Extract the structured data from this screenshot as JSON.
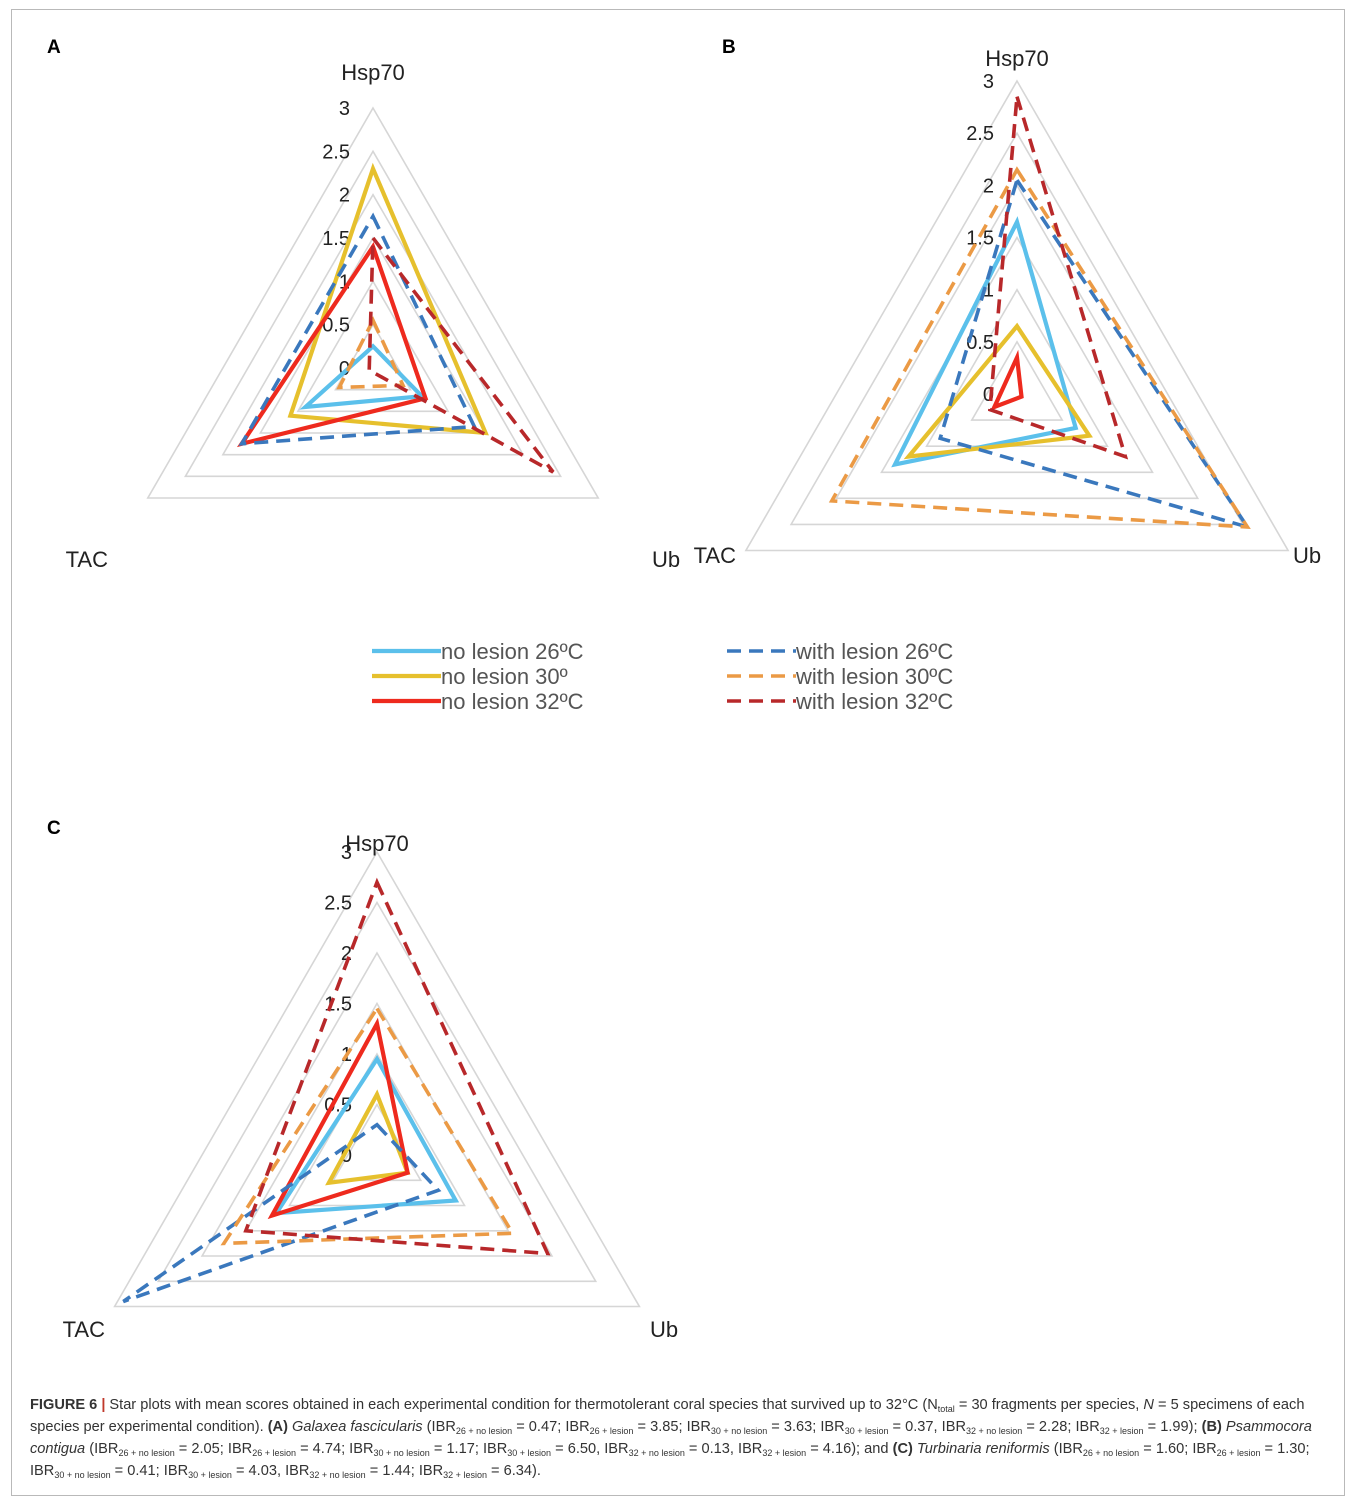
{
  "figure": {
    "label": "FIGURE 6",
    "separator": "|",
    "caption_lead": "Star plots with mean scores obtained in each experimental condition for thermotolerant coral species that survived up to 32°C (",
    "n_total": "N",
    "n_total_sub": "total",
    "n_total_eq": " = 30 fragments per species, ",
    "n_spec": "N",
    "n_spec_eq": " = 5 specimens of each species per experimental condition). ",
    "panels": [
      {
        "tag": "(A)",
        "species": "Galaxea fascicularis",
        "ibr": [
          {
            "sub": "26 + no lesion",
            "value": "0.47"
          },
          {
            "sub": "26 + lesion",
            "value": "3.85"
          },
          {
            "sub": "30 + no lesion",
            "value": "3.63"
          },
          {
            "sub": "30 + lesion",
            "value": "0.37"
          },
          {
            "sub": "32 + no lesion",
            "value": "2.28"
          },
          {
            "sub": "32 + lesion",
            "value": "1.99"
          }
        ]
      },
      {
        "tag": "(B)",
        "species": "Psammocora contigua",
        "ibr": [
          {
            "sub": "26 + no lesion",
            "value": "2.05"
          },
          {
            "sub": "26 + lesion",
            "value": "4.74"
          },
          {
            "sub": "30 + no lesion",
            "value": "1.17"
          },
          {
            "sub": "30 + lesion",
            "value": "6.50"
          },
          {
            "sub": "32 + no lesion",
            "value": "0.13"
          },
          {
            "sub": "32 + lesion",
            "value": "4.16"
          }
        ]
      },
      {
        "tag": "(C)",
        "species": "Turbinaria reniformis",
        "ibr": [
          {
            "sub": "26 + no lesion",
            "value": "1.60"
          },
          {
            "sub": "26 + lesion",
            "value": "1.30"
          },
          {
            "sub": "30 + no lesion",
            "value": "0.41"
          },
          {
            "sub": "30 + lesion",
            "value": "4.03"
          },
          {
            "sub": "32 + no lesion",
            "value": "1.44"
          },
          {
            "sub": "32 + lesion",
            "value": "6.34"
          }
        ]
      }
    ]
  },
  "legend": {
    "items": [
      {
        "key": "nl26",
        "label": "no lesion 26ºC",
        "color": "#5bc0eb",
        "dashed": false
      },
      {
        "key": "nl30",
        "label": "no lesion 30º",
        "color": "#e6c02d",
        "dashed": false
      },
      {
        "key": "nl32",
        "label": "no lesion 32ºC",
        "color": "#ee2a1e",
        "dashed": false
      },
      {
        "key": "wl26",
        "label": "with lesion 26ºC",
        "color": "#3a78bd",
        "dashed": true
      },
      {
        "key": "wl30",
        "label": "with lesion 30ºC",
        "color": "#eb9a45",
        "dashed": true
      },
      {
        "key": "wl32",
        "label": "with lesion 32ºC",
        "color": "#b8282a",
        "dashed": true
      }
    ]
  },
  "chart_data": [
    {
      "type": "radar",
      "panel": "A",
      "axes": [
        "Hsp70",
        "Ub",
        "TAC"
      ],
      "ticks": [
        "0",
        "0.5",
        "1",
        "1.5",
        "2",
        "2.5",
        "3"
      ],
      "range": [
        0,
        3
      ],
      "grid": true,
      "series": [
        {
          "name": "no lesion 26ºC",
          "values": [
            0.25,
            0.65,
            0.9
          ]
        },
        {
          "name": "no lesion 30º",
          "values": [
            2.3,
            1.5,
            1.1
          ]
        },
        {
          "name": "no lesion 32ºC",
          "values": [
            1.4,
            0.7,
            1.75
          ]
        },
        {
          "name": "with lesion 26ºC",
          "values": [
            1.75,
            1.35,
            1.75
          ]
        },
        {
          "name": "with lesion 30ºC",
          "values": [
            0.55,
            0.4,
            0.45
          ]
        },
        {
          "name": "with lesion 32ºC",
          "values": [
            1.5,
            2.4,
            0.05
          ]
        }
      ]
    },
    {
      "type": "radar",
      "panel": "B",
      "axes": [
        "Hsp70",
        "Ub",
        "TAC"
      ],
      "ticks": [
        "0",
        "0.5",
        "1",
        "1.5",
        "2",
        "2.5",
        "3"
      ],
      "range": [
        0,
        3
      ],
      "grid": true,
      "series": [
        {
          "name": "no lesion 26ºC",
          "values": [
            1.65,
            0.65,
            1.35
          ]
        },
        {
          "name": "no lesion 30º",
          "values": [
            0.65,
            0.8,
            1.2
          ]
        },
        {
          "name": "no lesion 32ºC",
          "values": [
            0.35,
            0.05,
            0.25
          ]
        },
        {
          "name": "with lesion 26ºC",
          "values": [
            2.05,
            2.55,
            0.85
          ]
        },
        {
          "name": "with lesion 30ºC",
          "values": [
            2.15,
            2.55,
            2.05
          ]
        },
        {
          "name": "with lesion 32ºC",
          "values": [
            2.85,
            1.2,
            0.3
          ]
        }
      ]
    },
    {
      "type": "radar",
      "panel": "C",
      "axes": [
        "Hsp70",
        "Ub",
        "TAC"
      ],
      "ticks": [
        "0",
        "0.5",
        "1",
        "1.5",
        "2",
        "2.5",
        "3"
      ],
      "range": [
        0,
        3
      ],
      "grid": true,
      "series": [
        {
          "name": "no lesion 26ºC",
          "values": [
            0.95,
            0.9,
            1.15
          ]
        },
        {
          "name": "no lesion 30º",
          "values": [
            0.6,
            0.35,
            0.55
          ]
        },
        {
          "name": "no lesion 32ºC",
          "values": [
            1.3,
            0.35,
            1.2
          ]
        },
        {
          "name": "with lesion 26ºC",
          "values": [
            0.3,
            0.7,
            2.9
          ]
        },
        {
          "name": "with lesion 30ºC",
          "values": [
            1.45,
            1.55,
            1.75
          ]
        },
        {
          "name": "with lesion 32ºC",
          "values": [
            2.7,
            1.95,
            1.5
          ]
        }
      ]
    }
  ]
}
